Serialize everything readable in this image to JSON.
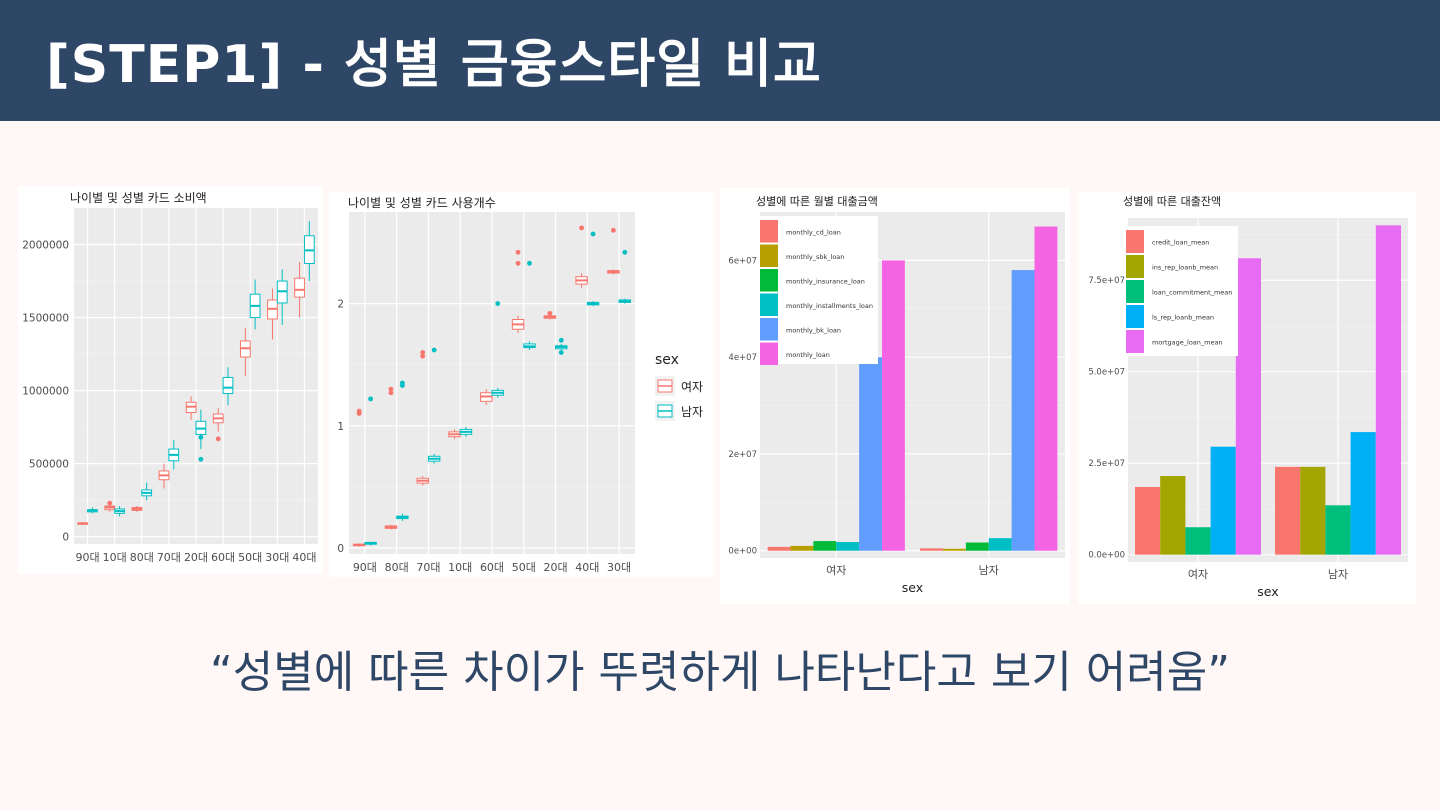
{
  "header": {
    "title": "[STEP1] - 성별 금융스타일 비교"
  },
  "caption": "“성별에 따른 차이가 뚜렷하게 나타난다고 보기 어려움”",
  "colors": {
    "female": "#f8766d",
    "male": "#00bfc4",
    "panel_bg": "#ebebeb",
    "header_bg": "#2f4766"
  },
  "chart_data": [
    {
      "type": "box",
      "title": "나이별 및 성별 카드 소비액",
      "categories": [
        "90대",
        "10대",
        "80대",
        "70대",
        "20대",
        "60대",
        "50대",
        "30대",
        "40대"
      ],
      "yticks": [
        0,
        500000,
        1000000,
        1500000,
        2000000
      ],
      "ytick_labels": [
        "0",
        "500000",
        "1000000",
        "1500000",
        "2000000"
      ],
      "ylim": [
        -50000,
        2250000
      ],
      "series": [
        {
          "name": "여자",
          "color": "#f8766d",
          "boxes": [
            {
              "min": 80000,
              "q1": 85000,
              "med": 90000,
              "q3": 95000,
              "max": 100000,
              "outliers": []
            },
            {
              "min": 170000,
              "q1": 185000,
              "med": 200000,
              "q3": 210000,
              "max": 220000,
              "outliers": [
                230000
              ]
            },
            {
              "min": 170000,
              "q1": 180000,
              "med": 190000,
              "q3": 200000,
              "max": 210000,
              "outliers": []
            },
            {
              "min": 330000,
              "q1": 390000,
              "med": 420000,
              "q3": 450000,
              "max": 500000,
              "outliers": []
            },
            {
              "min": 800000,
              "q1": 850000,
              "med": 890000,
              "q3": 920000,
              "max": 960000,
              "outliers": []
            },
            {
              "min": 720000,
              "q1": 780000,
              "med": 810000,
              "q3": 840000,
              "max": 880000,
              "outliers": [
                670000
              ]
            },
            {
              "min": 1100000,
              "q1": 1230000,
              "med": 1290000,
              "q3": 1340000,
              "max": 1430000,
              "outliers": []
            },
            {
              "min": 1350000,
              "q1": 1490000,
              "med": 1560000,
              "q3": 1620000,
              "max": 1700000,
              "outliers": []
            },
            {
              "min": 1500000,
              "q1": 1640000,
              "med": 1690000,
              "q3": 1770000,
              "max": 1880000,
              "outliers": []
            }
          ]
        },
        {
          "name": "남자",
          "color": "#00bfc4",
          "boxes": [
            {
              "min": 160000,
              "q1": 170000,
              "med": 180000,
              "q3": 185000,
              "max": 200000,
              "outliers": []
            },
            {
              "min": 140000,
              "q1": 160000,
              "med": 175000,
              "q3": 190000,
              "max": 210000,
              "outliers": []
            },
            {
              "min": 250000,
              "q1": 280000,
              "med": 300000,
              "q3": 320000,
              "max": 370000,
              "outliers": []
            },
            {
              "min": 460000,
              "q1": 520000,
              "med": 560000,
              "q3": 600000,
              "max": 660000,
              "outliers": []
            },
            {
              "min": 600000,
              "q1": 700000,
              "med": 740000,
              "q3": 790000,
              "max": 870000,
              "outliers": [
                530000,
                680000
              ]
            },
            {
              "min": 900000,
              "q1": 980000,
              "med": 1020000,
              "q3": 1090000,
              "max": 1160000,
              "outliers": []
            },
            {
              "min": 1420000,
              "q1": 1500000,
              "med": 1580000,
              "q3": 1660000,
              "max": 1760000,
              "outliers": []
            },
            {
              "min": 1450000,
              "q1": 1600000,
              "med": 1680000,
              "q3": 1750000,
              "max": 1830000,
              "outliers": []
            },
            {
              "min": 1750000,
              "q1": 1870000,
              "med": 1960000,
              "q3": 2060000,
              "max": 2160000,
              "outliers": []
            }
          ]
        }
      ]
    },
    {
      "type": "box",
      "title": "나이별 및 성별 카드 사용개수",
      "categories": [
        "90대",
        "80대",
        "70대",
        "10대",
        "60대",
        "50대",
        "20대",
        "40대",
        "30대"
      ],
      "yticks": [
        0,
        1,
        2
      ],
      "ytick_labels": [
        "0",
        "1",
        "2"
      ],
      "ylim": [
        -0.05,
        2.75
      ],
      "legend": {
        "title": "sex",
        "entries": [
          "여자",
          "남자"
        ]
      },
      "series": [
        {
          "name": "여자",
          "color": "#f8766d",
          "boxes": [
            {
              "min": 0.01,
              "q1": 0.02,
              "med": 0.025,
              "q3": 0.03,
              "max": 0.035,
              "outliers": [
                1.1,
                1.12
              ]
            },
            {
              "min": 0.15,
              "q1": 0.16,
              "med": 0.17,
              "q3": 0.18,
              "max": 0.19,
              "outliers": [
                1.27,
                1.3
              ]
            },
            {
              "min": 0.51,
              "q1": 0.53,
              "med": 0.55,
              "q3": 0.57,
              "max": 0.59,
              "outliers": [
                1.57,
                1.6
              ]
            },
            {
              "min": 0.89,
              "q1": 0.91,
              "med": 0.93,
              "q3": 0.95,
              "max": 0.97,
              "outliers": []
            },
            {
              "min": 1.17,
              "q1": 1.2,
              "med": 1.24,
              "q3": 1.27,
              "max": 1.3,
              "outliers": []
            },
            {
              "min": 1.76,
              "q1": 1.79,
              "med": 1.83,
              "q3": 1.87,
              "max": 1.9,
              "outliers": [
                2.33,
                2.42
              ]
            },
            {
              "min": 1.87,
              "q1": 1.88,
              "med": 1.89,
              "q3": 1.9,
              "max": 1.91,
              "outliers": [
                1.92
              ]
            },
            {
              "min": 2.13,
              "q1": 2.16,
              "med": 2.19,
              "q3": 2.22,
              "max": 2.25,
              "outliers": [
                2.62
              ]
            },
            {
              "min": 2.24,
              "q1": 2.25,
              "med": 2.26,
              "q3": 2.27,
              "max": 2.28,
              "outliers": [
                2.6
              ]
            }
          ]
        },
        {
          "name": "남자",
          "color": "#00bfc4",
          "boxes": [
            {
              "min": 0.02,
              "q1": 0.03,
              "med": 0.04,
              "q3": 0.045,
              "max": 0.05,
              "outliers": [
                1.22
              ]
            },
            {
              "min": 0.22,
              "q1": 0.24,
              "med": 0.25,
              "q3": 0.26,
              "max": 0.28,
              "outliers": [
                1.33,
                1.35
              ]
            },
            {
              "min": 0.69,
              "q1": 0.71,
              "med": 0.73,
              "q3": 0.75,
              "max": 0.77,
              "outliers": [
                1.62
              ]
            },
            {
              "min": 0.91,
              "q1": 0.93,
              "med": 0.95,
              "q3": 0.97,
              "max": 0.99,
              "outliers": []
            },
            {
              "min": 1.23,
              "q1": 1.25,
              "med": 1.27,
              "q3": 1.29,
              "max": 1.31,
              "outliers": [
                2.0
              ]
            },
            {
              "min": 1.62,
              "q1": 1.64,
              "med": 1.65,
              "q3": 1.67,
              "max": 1.69,
              "outliers": [
                2.33
              ]
            },
            {
              "min": 1.62,
              "q1": 1.63,
              "med": 1.645,
              "q3": 1.655,
              "max": 1.67,
              "outliers": [
                1.6,
                1.7
              ]
            },
            {
              "min": 1.98,
              "q1": 1.99,
              "med": 2.0,
              "q3": 2.01,
              "max": 2.02,
              "outliers": [
                2.57
              ]
            },
            {
              "min": 2.0,
              "q1": 2.01,
              "med": 2.02,
              "q3": 2.03,
              "max": 2.04,
              "outliers": [
                2.42
              ]
            }
          ]
        }
      ]
    },
    {
      "type": "bar",
      "title": "성별에 따른 월별 대출금액",
      "xlabel": "sex",
      "categories": [
        "여자",
        "남자"
      ],
      "yticks": [
        0,
        20000000,
        40000000,
        60000000
      ],
      "ytick_labels": [
        "0e+00",
        "2e+07",
        "4e+07",
        "6e+07"
      ],
      "ylim": [
        -1500000,
        70000000
      ],
      "series": [
        {
          "name": "monthly_cd_loan",
          "color": "#f8766d",
          "values": [
            800000,
            500000
          ]
        },
        {
          "name": "monthly_sbk_loan",
          "color": "#b79f00",
          "values": [
            1000000,
            400000
          ]
        },
        {
          "name": "monthly_insurance_loan",
          "color": "#00ba38",
          "values": [
            2000000,
            1700000
          ]
        },
        {
          "name": "monthly_installments_loan",
          "color": "#00bfc4",
          "values": [
            1800000,
            2600000
          ]
        },
        {
          "name": "monthly_bk_loan",
          "color": "#619cff",
          "values": [
            40000000,
            58000000
          ]
        },
        {
          "name": "monthly_loan",
          "color": "#f564e3",
          "values": [
            60000000,
            67000000
          ]
        }
      ]
    },
    {
      "type": "bar",
      "title": "성별에 따른 대출잔액",
      "xlabel": "sex",
      "categories": [
        "여자",
        "남자"
      ],
      "yticks": [
        0,
        25000000,
        50000000,
        75000000
      ],
      "ytick_labels": [
        "0.0e+00",
        "2.5e+07",
        "5.0e+07",
        "7.5e+07"
      ],
      "ylim": [
        -2000000,
        92000000
      ],
      "series": [
        {
          "name": "credit_loan_mean",
          "color": "#f8766d",
          "values": [
            18500000,
            24000000
          ]
        },
        {
          "name": "ins_rep_loanb_mean",
          "color": "#a3a500",
          "values": [
            21500000,
            24000000
          ]
        },
        {
          "name": "loan_commitment_mean",
          "color": "#00bf7d",
          "values": [
            7500000,
            13500000
          ]
        },
        {
          "name": "ls_rep_loanb_mean",
          "color": "#00b0f6",
          "values": [
            29500000,
            33500000
          ]
        },
        {
          "name": "mortgage_loan_mean",
          "color": "#e76bf3",
          "values": [
            81000000,
            90000000
          ]
        }
      ]
    }
  ]
}
